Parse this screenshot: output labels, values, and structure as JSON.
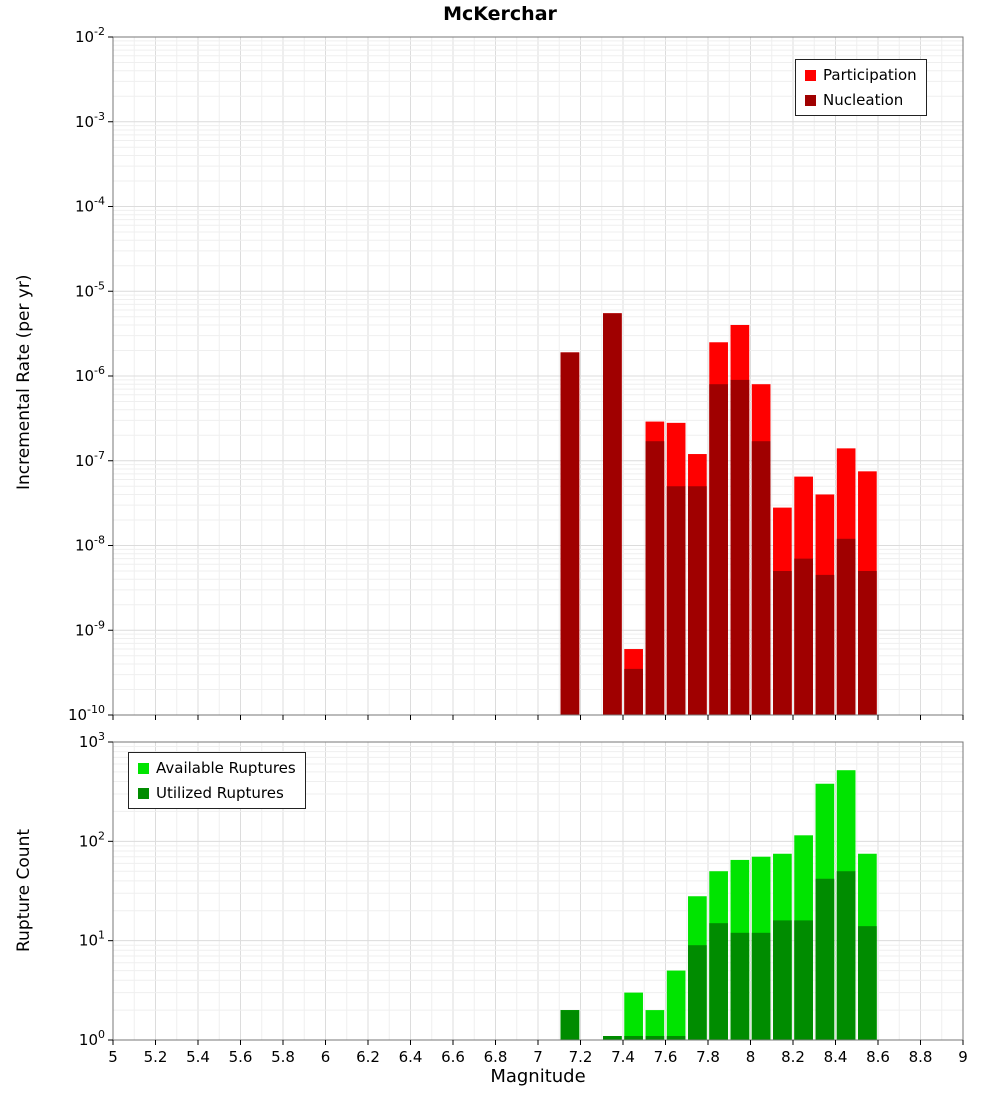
{
  "title": "McKerchar",
  "xlabel": "Magnitude",
  "x_axis": {
    "min": 5,
    "max": 9,
    "tick_step": 0.2,
    "tick_labels": [
      "5",
      "5.2",
      "5.4",
      "5.6",
      "5.8",
      "6",
      "6.2",
      "6.4",
      "6.6",
      "6.8",
      "7",
      "7.2",
      "7.4",
      "7.6",
      "7.8",
      "8",
      "8.2",
      "8.4",
      "8.6",
      "8.8",
      "9"
    ]
  },
  "colors": {
    "participation": "#ff0000",
    "nucleation": "#a00000",
    "available": "#00e400",
    "utilized": "#008c00",
    "grid_minor": "#efefef",
    "grid_major": "#dcdcdc",
    "plot_border": "#777777",
    "axis_tick": "#000000"
  },
  "chart_data": [
    {
      "type": "bar",
      "stacking": "overlay",
      "title": "McKerchar",
      "ylabel": "Incremental Rate (per yr)",
      "y_scale": "log",
      "ylim": [
        1e-10,
        0.01
      ],
      "y_tick_exponents": [
        -2,
        -3,
        -4,
        -5,
        -6,
        -7,
        -8,
        -9,
        -10
      ],
      "grid": true,
      "bin_width": 0.1,
      "categories": [
        7.15,
        7.35,
        7.45,
        7.55,
        7.65,
        7.75,
        7.85,
        7.95,
        8.05,
        8.15,
        8.25,
        8.35,
        8.45,
        8.55
      ],
      "series": [
        {
          "name": "Participation",
          "color_key": "participation",
          "values": [
            1.9e-06,
            5.5e-06,
            6e-10,
            2.9e-07,
            2.8e-07,
            1.2e-07,
            2.5e-06,
            4e-06,
            8e-07,
            2.8e-08,
            6.5e-08,
            4e-08,
            1.4e-07,
            7.5e-08
          ]
        },
        {
          "name": "Nucleation",
          "color_key": "nucleation",
          "values": [
            1.9e-06,
            5.5e-06,
            3.5e-10,
            1.7e-07,
            5e-08,
            5e-08,
            8e-07,
            9e-07,
            1.7e-07,
            5e-09,
            7e-09,
            4.5e-09,
            1.2e-08,
            5e-09
          ]
        }
      ],
      "legend": {
        "position": "top-right"
      }
    },
    {
      "type": "bar",
      "stacking": "overlay",
      "ylabel": "Rupture Count",
      "y_scale": "log",
      "ylim": [
        1,
        1000
      ],
      "y_tick_exponents": [
        3,
        2,
        1,
        0
      ],
      "grid": true,
      "bin_width": 0.1,
      "categories": [
        7.15,
        7.35,
        7.45,
        7.55,
        7.65,
        7.75,
        7.85,
        7.95,
        8.05,
        8.15,
        8.25,
        8.35,
        8.45,
        8.55
      ],
      "series": [
        {
          "name": "Available Ruptures",
          "color_key": "available",
          "values": [
            2,
            1,
            3,
            2,
            5,
            28,
            50,
            65,
            70,
            75,
            115,
            380,
            520,
            75
          ]
        },
        {
          "name": "Utilized Ruptures",
          "color_key": "utilized",
          "values": [
            2,
            1,
            1,
            1,
            1,
            9,
            15,
            12,
            12,
            16,
            16,
            42,
            50,
            14
          ]
        }
      ],
      "legend": {
        "position": "top-left"
      }
    }
  ]
}
